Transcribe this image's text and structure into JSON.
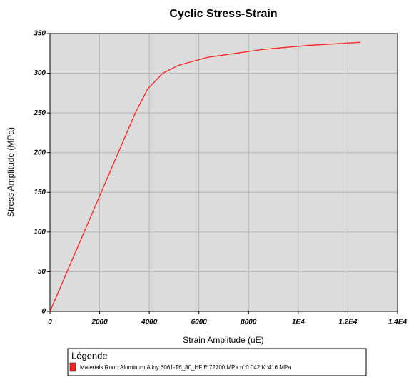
{
  "chart_data": {
    "type": "line",
    "title": "Cyclic Stress-Strain",
    "x_label": "Strain Amplitude (uE)",
    "y_label": "Stress Amplitude (MPa)",
    "legend_title": "Légende",
    "xlim": [
      0,
      14000
    ],
    "ylim": [
      0,
      350
    ],
    "xticks": [
      0,
      2000,
      4000,
      6000,
      8000,
      {
        "value": 10000,
        "label": "1E4"
      },
      {
        "value": 12000,
        "label": "1.2E4"
      },
      {
        "value": 14000,
        "label": "1.4E4"
      }
    ],
    "yticks": [
      0,
      50,
      100,
      150,
      200,
      250,
      300,
      350
    ],
    "grid": true,
    "x": [
      0,
      1376,
      2751,
      3439,
      3931,
      4541,
      5176,
      6332,
      8569,
      10378,
      12500
    ],
    "series": [
      {
        "name": "Materials Root::Aluminum Alloy 6061-T6_80_HF E:72700 MPa  n':0.042 K':416 MPa",
        "color": "#ff2020",
        "values": [
          0,
          100,
          200,
          250,
          280,
          300,
          310,
          320,
          330,
          335,
          339
        ]
      }
    ]
  }
}
